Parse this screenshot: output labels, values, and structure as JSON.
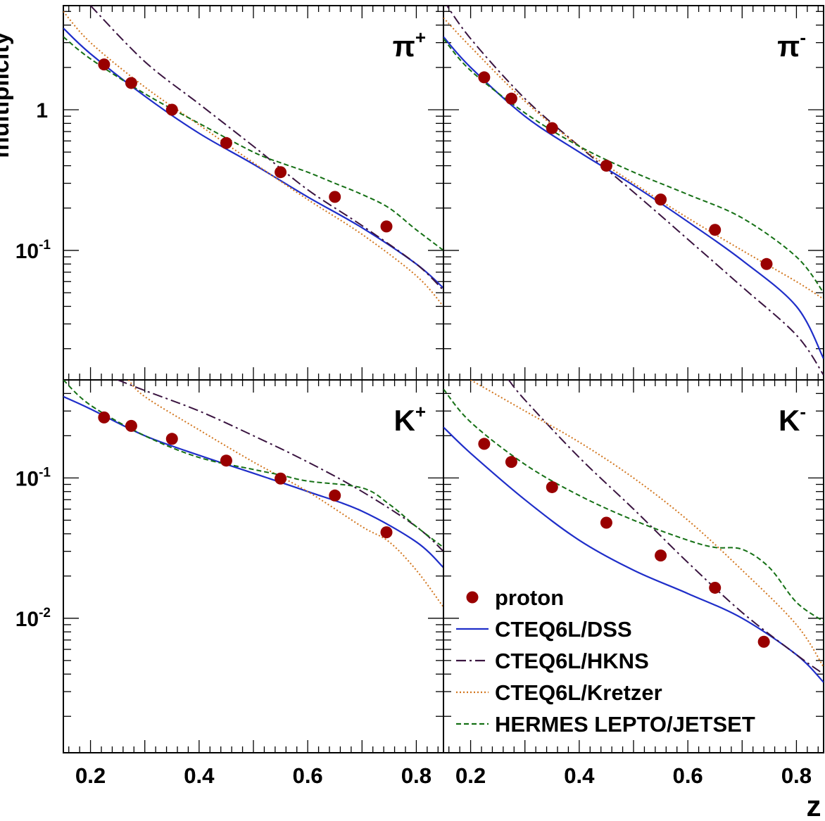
{
  "figure": {
    "ylabel": "multiplicity",
    "xlabel": "z"
  },
  "legend": {
    "entries": [
      {
        "label": "proton",
        "style": "marker",
        "color": "#990000"
      },
      {
        "label": "CTEQ6L/DSS",
        "style": "solid",
        "color": "#1f2ec9"
      },
      {
        "label": "CTEQ6L/HKNS",
        "style": "dashdot",
        "color": "#3a1440"
      },
      {
        "label": "CTEQ6L/Kretzer",
        "style": "dotted",
        "color": "#d2761e"
      },
      {
        "label": "HERMES LEPTO/JETSET",
        "style": "dashed",
        "color": "#157015"
      }
    ]
  },
  "chart_data": [
    {
      "type": "scatter",
      "panel": "pi-plus",
      "label_base": "π",
      "label_sup": "+",
      "xlim": [
        0.15,
        0.85
      ],
      "ylim": [
        0.012,
        5.5
      ],
      "yscale": "log",
      "x_ticks": [
        "0.2",
        "0.4",
        "0.6",
        "0.8"
      ],
      "y_ticks": [
        {
          "value": 1,
          "base": "1",
          "exp": ""
        },
        {
          "value": 0.1,
          "base": "10",
          "exp": "-1"
        }
      ],
      "series": [
        {
          "name": "proton",
          "x": [
            0.225,
            0.275,
            0.35,
            0.45,
            0.55,
            0.65,
            0.745
          ],
          "y": [
            2.1,
            1.55,
            1.0,
            0.58,
            0.36,
            0.24,
            0.148
          ]
        },
        {
          "name": "CTEQ6L/DSS",
          "x": [
            0.15,
            0.2,
            0.3,
            0.4,
            0.5,
            0.6,
            0.7,
            0.8,
            0.85
          ],
          "y": [
            3.8,
            2.5,
            1.25,
            0.68,
            0.41,
            0.24,
            0.145,
            0.08,
            0.054
          ]
        },
        {
          "name": "CTEQ6L/HKNS",
          "x": [
            0.2,
            0.3,
            0.4,
            0.5,
            0.6,
            0.7,
            0.8,
            0.85
          ],
          "y": [
            5.5,
            2.2,
            1.1,
            0.55,
            0.27,
            0.15,
            0.08,
            0.052
          ]
        },
        {
          "name": "CTEQ6L/Kretzer",
          "x": [
            0.15,
            0.2,
            0.3,
            0.4,
            0.5,
            0.6,
            0.7,
            0.8,
            0.85
          ],
          "y": [
            5.0,
            3.0,
            1.45,
            0.78,
            0.42,
            0.23,
            0.13,
            0.066,
            0.04
          ]
        },
        {
          "name": "HERMES LEPTO/JETSET",
          "x": [
            0.15,
            0.2,
            0.3,
            0.4,
            0.5,
            0.55,
            0.6,
            0.65,
            0.7,
            0.75,
            0.8,
            0.85
          ],
          "y": [
            3.3,
            2.3,
            1.3,
            0.8,
            0.5,
            0.42,
            0.36,
            0.3,
            0.25,
            0.2,
            0.14,
            0.1
          ]
        }
      ]
    },
    {
      "type": "scatter",
      "panel": "pi-minus",
      "label_base": "π",
      "label_sup": "-",
      "xlim": [
        0.15,
        0.85
      ],
      "ylim": [
        0.012,
        5.5
      ],
      "yscale": "log",
      "x_ticks": [
        "0.2",
        "0.4",
        "0.6",
        "0.8"
      ],
      "y_ticks": [],
      "series": [
        {
          "name": "proton",
          "x": [
            0.225,
            0.275,
            0.35,
            0.45,
            0.55,
            0.65,
            0.745
          ],
          "y": [
            1.7,
            1.2,
            0.74,
            0.4,
            0.23,
            0.14,
            0.08
          ]
        },
        {
          "name": "CTEQ6L/DSS",
          "x": [
            0.15,
            0.2,
            0.3,
            0.4,
            0.5,
            0.6,
            0.7,
            0.8,
            0.85
          ],
          "y": [
            3.3,
            2.0,
            0.9,
            0.5,
            0.29,
            0.16,
            0.085,
            0.04,
            0.017
          ]
        },
        {
          "name": "CTEQ6L/HKNS",
          "x": [
            0.15,
            0.2,
            0.3,
            0.4,
            0.5,
            0.6,
            0.7,
            0.8,
            0.85
          ],
          "y": [
            6.0,
            3.2,
            1.2,
            0.55,
            0.26,
            0.12,
            0.055,
            0.025,
            0.013
          ]
        },
        {
          "name": "CTEQ6L/Kretzer",
          "x": [
            0.15,
            0.2,
            0.3,
            0.4,
            0.5,
            0.6,
            0.7,
            0.8,
            0.85
          ],
          "y": [
            4.5,
            2.8,
            1.15,
            0.55,
            0.3,
            0.17,
            0.1,
            0.06,
            0.045
          ]
        },
        {
          "name": "HERMES LEPTO/JETSET",
          "x": [
            0.15,
            0.2,
            0.3,
            0.4,
            0.5,
            0.6,
            0.7,
            0.8,
            0.85
          ],
          "y": [
            3.2,
            1.9,
            0.95,
            0.55,
            0.36,
            0.25,
            0.17,
            0.09,
            0.05
          ]
        }
      ]
    },
    {
      "type": "scatter",
      "panel": "K-plus",
      "label_base": "K",
      "label_sup": "+",
      "xlim": [
        0.15,
        0.85
      ],
      "ylim": [
        0.0011,
        0.5
      ],
      "yscale": "log",
      "x_ticks": [
        "0.2",
        "0.4",
        "0.6",
        "0.8"
      ],
      "y_ticks": [
        {
          "value": 0.1,
          "base": "10",
          "exp": "-1"
        },
        {
          "value": 0.01,
          "base": "10",
          "exp": "-2"
        }
      ],
      "series": [
        {
          "name": "proton",
          "x": [
            0.225,
            0.275,
            0.35,
            0.45,
            0.55,
            0.65,
            0.745
          ],
          "y": [
            0.27,
            0.235,
            0.19,
            0.133,
            0.099,
            0.075,
            0.041
          ]
        },
        {
          "name": "CTEQ6L/DSS",
          "x": [
            0.15,
            0.2,
            0.3,
            0.4,
            0.5,
            0.6,
            0.7,
            0.8,
            0.85
          ],
          "y": [
            0.38,
            0.31,
            0.2,
            0.145,
            0.108,
            0.08,
            0.058,
            0.035,
            0.023
          ]
        },
        {
          "name": "CTEQ6L/HKNS",
          "x": [
            0.25,
            0.3,
            0.4,
            0.5,
            0.6,
            0.7,
            0.8,
            0.85
          ],
          "y": [
            0.5,
            0.42,
            0.3,
            0.2,
            0.13,
            0.08,
            0.045,
            0.03
          ]
        },
        {
          "name": "CTEQ6L/Kretzer",
          "x": [
            0.27,
            0.3,
            0.4,
            0.5,
            0.6,
            0.7,
            0.75,
            0.8,
            0.85
          ],
          "y": [
            0.5,
            0.38,
            0.22,
            0.13,
            0.08,
            0.045,
            0.035,
            0.022,
            0.012
          ]
        },
        {
          "name": "HERMES LEPTO/JETSET",
          "x": [
            0.15,
            0.2,
            0.3,
            0.4,
            0.5,
            0.55,
            0.6,
            0.7,
            0.75,
            0.8,
            0.85
          ],
          "y": [
            0.5,
            0.33,
            0.2,
            0.14,
            0.115,
            0.105,
            0.095,
            0.085,
            0.065,
            0.045,
            0.032
          ]
        }
      ]
    },
    {
      "type": "scatter",
      "panel": "K-minus",
      "label_base": "K",
      "label_sup": "-",
      "xlim": [
        0.15,
        0.85
      ],
      "ylim": [
        0.0011,
        0.5
      ],
      "yscale": "log",
      "x_ticks": [
        "0.2",
        "0.4",
        "0.6",
        "0.8"
      ],
      "y_ticks": [],
      "series": [
        {
          "name": "proton",
          "x": [
            0.225,
            0.275,
            0.35,
            0.45,
            0.55,
            0.65,
            0.74
          ],
          "y": [
            0.175,
            0.13,
            0.086,
            0.048,
            0.028,
            0.0165,
            0.0068
          ]
        },
        {
          "name": "CTEQ6L/DSS",
          "x": [
            0.15,
            0.2,
            0.3,
            0.4,
            0.5,
            0.6,
            0.7,
            0.8,
            0.85
          ],
          "y": [
            0.23,
            0.15,
            0.07,
            0.036,
            0.022,
            0.015,
            0.01,
            0.0055,
            0.0035
          ]
        },
        {
          "name": "CTEQ6L/HKNS",
          "x": [
            0.27,
            0.3,
            0.4,
            0.5,
            0.6,
            0.7,
            0.8,
            0.85
          ],
          "y": [
            0.5,
            0.36,
            0.14,
            0.06,
            0.025,
            0.011,
            0.0055,
            0.004
          ]
        },
        {
          "name": "CTEQ6L/Kretzer",
          "x": [
            0.2,
            0.3,
            0.4,
            0.5,
            0.6,
            0.7,
            0.8,
            0.85
          ],
          "y": [
            0.5,
            0.3,
            0.18,
            0.1,
            0.05,
            0.022,
            0.009,
            0.0045
          ]
        },
        {
          "name": "HERMES LEPTO/JETSET",
          "x": [
            0.15,
            0.2,
            0.3,
            0.4,
            0.5,
            0.6,
            0.65,
            0.7,
            0.75,
            0.8,
            0.85
          ],
          "y": [
            0.43,
            0.25,
            0.125,
            0.075,
            0.05,
            0.036,
            0.032,
            0.031,
            0.023,
            0.013,
            0.0095
          ]
        }
      ]
    }
  ]
}
